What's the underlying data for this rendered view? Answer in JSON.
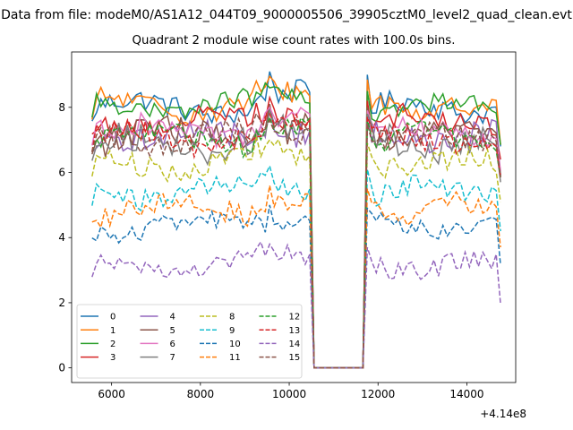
{
  "chart_data": {
    "type": "line",
    "suptitle": "Data from file: modeM0/AS1A12_044T09_9000005506_39905cztM0_level2_quad_clean.evt",
    "title": "Quadrant 2 module wise count rates with 100.0s bins.",
    "xlabel": "",
    "ylabel": "",
    "x_offset_label": "+4.14e8",
    "xlim": [
      5100,
      15100
    ],
    "ylim": [
      -0.45,
      9.7
    ],
    "x_ticks": [
      6000,
      8000,
      10000,
      12000,
      14000
    ],
    "y_ticks": [
      0,
      2,
      4,
      6,
      8
    ],
    "grid": false,
    "legend_position": "lower-left",
    "legend_columns": 4,
    "x_segments": [
      {
        "start": 5560,
        "end": 10460,
        "step": 100
      },
      {
        "start": 11760,
        "end": 14760,
        "step": 100
      }
    ],
    "gap": {
      "x": [
        10560,
        11660
      ],
      "value": 0
    },
    "series": [
      {
        "name": "0",
        "color": "#1f77b4",
        "dash": "solid",
        "mean": 8.0,
        "amplitude": 0.35,
        "peak": 9.1
      },
      {
        "name": "1",
        "color": "#ff7f0e",
        "dash": "solid",
        "mean": 8.05,
        "amplitude": 0.35,
        "peak": 8.95
      },
      {
        "name": "2",
        "color": "#2ca02c",
        "dash": "solid",
        "mean": 8.05,
        "amplitude": 0.3,
        "peak": 8.6
      },
      {
        "name": "3",
        "color": "#d62728",
        "dash": "solid",
        "mean": 7.6,
        "amplitude": 0.35,
        "peak": 8.3
      },
      {
        "name": "4",
        "color": "#9467bd",
        "dash": "solid",
        "mean": 7.1,
        "amplitude": 0.4,
        "peak": 8.0
      },
      {
        "name": "5",
        "color": "#8c564b",
        "dash": "solid",
        "mean": 7.1,
        "amplitude": 0.45,
        "peak": 8.1
      },
      {
        "name": "6",
        "color": "#e377c2",
        "dash": "solid",
        "mean": 7.25,
        "amplitude": 0.35,
        "peak": 8.0
      },
      {
        "name": "7",
        "color": "#7f7f7f",
        "dash": "solid",
        "mean": 6.9,
        "amplitude": 0.45,
        "peak": 7.9
      },
      {
        "name": "8",
        "color": "#bcbd22",
        "dash": "dashed",
        "mean": 6.3,
        "amplitude": 0.35,
        "peak": 7.0
      },
      {
        "name": "9",
        "color": "#17becf",
        "dash": "dashed",
        "mean": 5.4,
        "amplitude": 0.35,
        "peak": 6.2
      },
      {
        "name": "10",
        "color": "#1f77b4",
        "dash": "dashed",
        "mean": 4.35,
        "amplitude": 0.3,
        "peak": 5.0
      },
      {
        "name": "11",
        "color": "#ff7f0e",
        "dash": "dashed",
        "mean": 4.9,
        "amplitude": 0.35,
        "peak": 5.6
      },
      {
        "name": "12",
        "color": "#2ca02c",
        "dash": "dashed",
        "mean": 7.05,
        "amplitude": 0.35,
        "peak": 7.7
      },
      {
        "name": "13",
        "color": "#d62728",
        "dash": "dashed",
        "mean": 7.05,
        "amplitude": 0.35,
        "peak": 7.8
      },
      {
        "name": "14",
        "color": "#9467bd",
        "dash": "dashed",
        "mean": 3.15,
        "amplitude": 0.3,
        "peak": 3.8
      },
      {
        "name": "15",
        "color": "#8c564b",
        "dash": "dashed",
        "mean": 7.05,
        "amplitude": 0.35,
        "peak": 7.6
      }
    ]
  }
}
